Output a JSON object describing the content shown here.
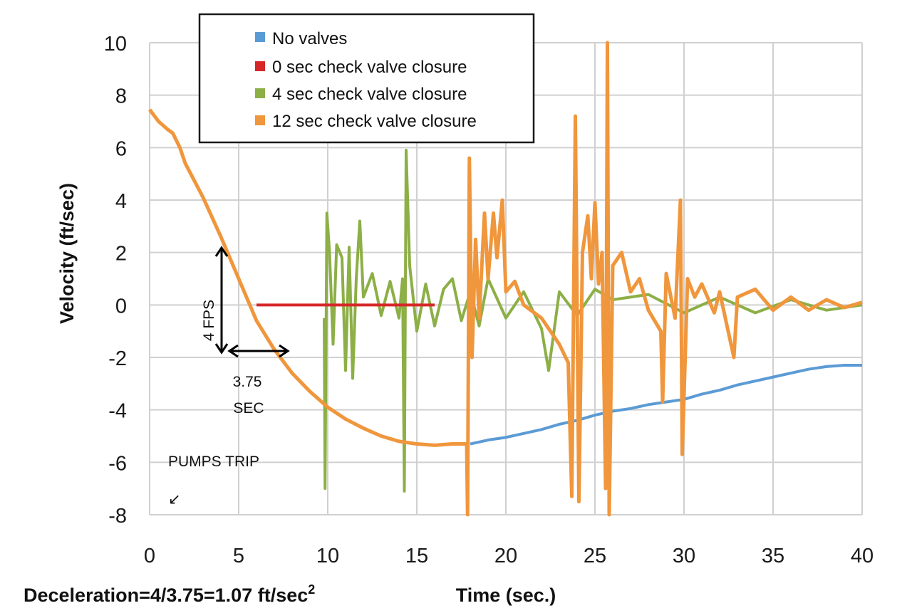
{
  "chart_data": {
    "type": "line",
    "title": "",
    "xlabel": "Time (sec.)",
    "ylabel": "Velocity (ft/sec)",
    "xlim": [
      0,
      40
    ],
    "ylim": [
      -8,
      10
    ],
    "x_ticks": [
      0,
      5,
      10,
      15,
      20,
      25,
      30,
      35,
      40
    ],
    "y_ticks": [
      -8,
      -6,
      -4,
      -2,
      0,
      2,
      4,
      6,
      8,
      10
    ],
    "grid": true,
    "legend_position": "top",
    "series": [
      {
        "name": "No valves",
        "color": "#5b9bd5",
        "points": [
          [
            18,
            -5.3
          ],
          [
            19,
            -5.15
          ],
          [
            20,
            -5.05
          ],
          [
            21,
            -4.9
          ],
          [
            22,
            -4.75
          ],
          [
            23,
            -4.55
          ],
          [
            24,
            -4.4
          ],
          [
            25,
            -4.2
          ],
          [
            26,
            -4.05
          ],
          [
            27,
            -3.95
          ],
          [
            28,
            -3.8
          ],
          [
            29,
            -3.7
          ],
          [
            30,
            -3.6
          ],
          [
            31,
            -3.4
          ],
          [
            32,
            -3.25
          ],
          [
            33,
            -3.05
          ],
          [
            34,
            -2.9
          ],
          [
            35,
            -2.75
          ],
          [
            36,
            -2.6
          ],
          [
            37,
            -2.45
          ],
          [
            38,
            -2.35
          ],
          [
            39,
            -2.3
          ],
          [
            40,
            -2.3
          ]
        ]
      },
      {
        "name": "0 sec check valve closure",
        "color": "#d62728",
        "points": [
          [
            6,
            0
          ],
          [
            16,
            0
          ]
        ]
      },
      {
        "name": "4 sec check valve closure",
        "color": "#8caf46",
        "points": [
          [
            9.8,
            -0.5
          ],
          [
            9.85,
            -7.0
          ],
          [
            9.95,
            3.5
          ],
          [
            10.1,
            2.0
          ],
          [
            10.3,
            -1.5
          ],
          [
            10.5,
            2.3
          ],
          [
            10.8,
            1.8
          ],
          [
            11.0,
            -2.5
          ],
          [
            11.2,
            2.2
          ],
          [
            11.4,
            -2.8
          ],
          [
            11.6,
            1.0
          ],
          [
            11.8,
            3.2
          ],
          [
            12.0,
            0.3
          ],
          [
            12.5,
            1.2
          ],
          [
            13.0,
            -0.4
          ],
          [
            13.5,
            0.9
          ],
          [
            14.0,
            -0.5
          ],
          [
            14.2,
            1.0
          ],
          [
            14.3,
            -7.1
          ],
          [
            14.4,
            5.9
          ],
          [
            14.6,
            1.5
          ],
          [
            15.0,
            -1.0
          ],
          [
            15.5,
            0.8
          ],
          [
            16.0,
            -0.8
          ],
          [
            16.5,
            0.6
          ],
          [
            17.0,
            1.0
          ],
          [
            17.5,
            -0.6
          ],
          [
            18.0,
            0.5
          ],
          [
            18.5,
            -0.8
          ],
          [
            19.0,
            1.0
          ],
          [
            20.0,
            -0.5
          ],
          [
            21.0,
            0.5
          ],
          [
            22.0,
            -0.9
          ],
          [
            22.4,
            -2.5
          ],
          [
            23.0,
            0.5
          ],
          [
            24.0,
            -0.4
          ],
          [
            25.0,
            0.6
          ],
          [
            26.0,
            0.2
          ],
          [
            28.0,
            0.4
          ],
          [
            30.0,
            -0.3
          ],
          [
            32.0,
            0.3
          ],
          [
            34.0,
            -0.3
          ],
          [
            36.0,
            0.2
          ],
          [
            38.0,
            -0.2
          ],
          [
            40.0,
            0.0
          ]
        ]
      },
      {
        "name": "12 sec check valve closure",
        "color": "#f0963c",
        "points": [
          [
            0,
            7.45
          ],
          [
            0.5,
            7.0
          ],
          [
            1.0,
            6.7
          ],
          [
            1.3,
            6.55
          ],
          [
            1.7,
            6.0
          ],
          [
            2.0,
            5.4
          ],
          [
            3.0,
            4.1
          ],
          [
            4.0,
            2.6
          ],
          [
            5.0,
            1.0
          ],
          [
            6.0,
            -0.6
          ],
          [
            7.0,
            -1.7
          ],
          [
            8.0,
            -2.6
          ],
          [
            9.0,
            -3.3
          ],
          [
            10.0,
            -3.9
          ],
          [
            11.0,
            -4.35
          ],
          [
            12.0,
            -4.7
          ],
          [
            13.0,
            -5.0
          ],
          [
            14.0,
            -5.2
          ],
          [
            15.0,
            -5.3
          ],
          [
            16.0,
            -5.35
          ],
          [
            17.0,
            -5.3
          ],
          [
            17.8,
            -5.3
          ],
          [
            17.85,
            -8.0
          ],
          [
            17.95,
            5.6
          ],
          [
            18.1,
            -2.0
          ],
          [
            18.3,
            2.5
          ],
          [
            18.5,
            -0.5
          ],
          [
            18.8,
            3.5
          ],
          [
            19.0,
            1.0
          ],
          [
            19.3,
            3.5
          ],
          [
            19.5,
            1.8
          ],
          [
            19.8,
            4.0
          ],
          [
            20.0,
            0.5
          ],
          [
            20.5,
            0.9
          ],
          [
            21.0,
            0.0
          ],
          [
            22.0,
            -0.5
          ],
          [
            23.0,
            -1.5
          ],
          [
            23.5,
            -2.2
          ],
          [
            23.7,
            -7.3
          ],
          [
            23.9,
            7.2
          ],
          [
            24.1,
            -7.5
          ],
          [
            24.3,
            2.0
          ],
          [
            24.6,
            3.4
          ],
          [
            24.8,
            1.0
          ],
          [
            25.0,
            3.9
          ],
          [
            25.2,
            0.8
          ],
          [
            25.4,
            2.0
          ],
          [
            25.6,
            -7.0
          ],
          [
            25.7,
            10.0
          ],
          [
            25.8,
            -8.0
          ],
          [
            26.0,
            1.5
          ],
          [
            26.5,
            2.0
          ],
          [
            27.0,
            0.5
          ],
          [
            27.5,
            1.0
          ],
          [
            28.0,
            -0.2
          ],
          [
            28.7,
            -1.0
          ],
          [
            28.8,
            -3.7
          ],
          [
            29.0,
            1.2
          ],
          [
            29.5,
            -0.5
          ],
          [
            29.8,
            4.0
          ],
          [
            29.9,
            -5.7
          ],
          [
            30.2,
            1.0
          ],
          [
            30.6,
            0.3
          ],
          [
            31.0,
            0.8
          ],
          [
            31.7,
            -0.3
          ],
          [
            32.0,
            0.5
          ],
          [
            32.8,
            -2.0
          ],
          [
            33.0,
            0.3
          ],
          [
            34.0,
            0.6
          ],
          [
            35.0,
            -0.2
          ],
          [
            36.0,
            0.3
          ],
          [
            37.0,
            -0.2
          ],
          [
            38.0,
            0.2
          ],
          [
            39.0,
            -0.1
          ],
          [
            40.0,
            0.1
          ]
        ]
      }
    ],
    "annotations": {
      "fps_label": "4 FPS",
      "sec_value": "3.75",
      "sec_unit": "SEC",
      "pumps_trip": "PUMPS TRIP",
      "pumps_trip_arrow": "↙",
      "deceleration_main": "Deceleration=4/3.75=1.07 ft/sec",
      "deceleration_sup": "2"
    }
  }
}
